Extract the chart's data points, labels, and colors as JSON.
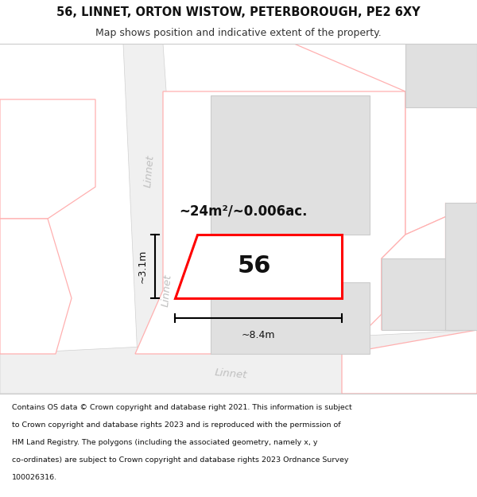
{
  "title_line1": "56, LINNET, ORTON WISTOW, PETERBOROUGH, PE2 6XY",
  "title_line2": "Map shows position and indicative extent of the property.",
  "footer_lines": [
    "Contains OS data © Crown copyright and database right 2021. This information is subject",
    "to Crown copyright and database rights 2023 and is reproduced with the permission of",
    "HM Land Registry. The polygons (including the associated geometry, namely x, y",
    "co-ordinates) are subject to Crown copyright and database rights 2023 Ordnance Survey",
    "100026316."
  ],
  "map_bg": "#ffffff",
  "property_edge": "#ff0000",
  "nearby_edge": "#ffb0b0",
  "building_fill": "#e0e0e0",
  "building_edge": "#cccccc",
  "road_fill": "#f0f0f0",
  "road_edge": "#d0d0d0",
  "label_color": "#c0c0c0",
  "area_label": "~24m²/~0.006ac.",
  "width_label": "~8.4m",
  "height_label": "~3.1m",
  "number_label": "56",
  "title_fontsize": 10.5,
  "subtitle_fontsize": 9,
  "footer_fontsize": 6.8,
  "label_fontsize": 9.5,
  "number_fontsize": 22
}
